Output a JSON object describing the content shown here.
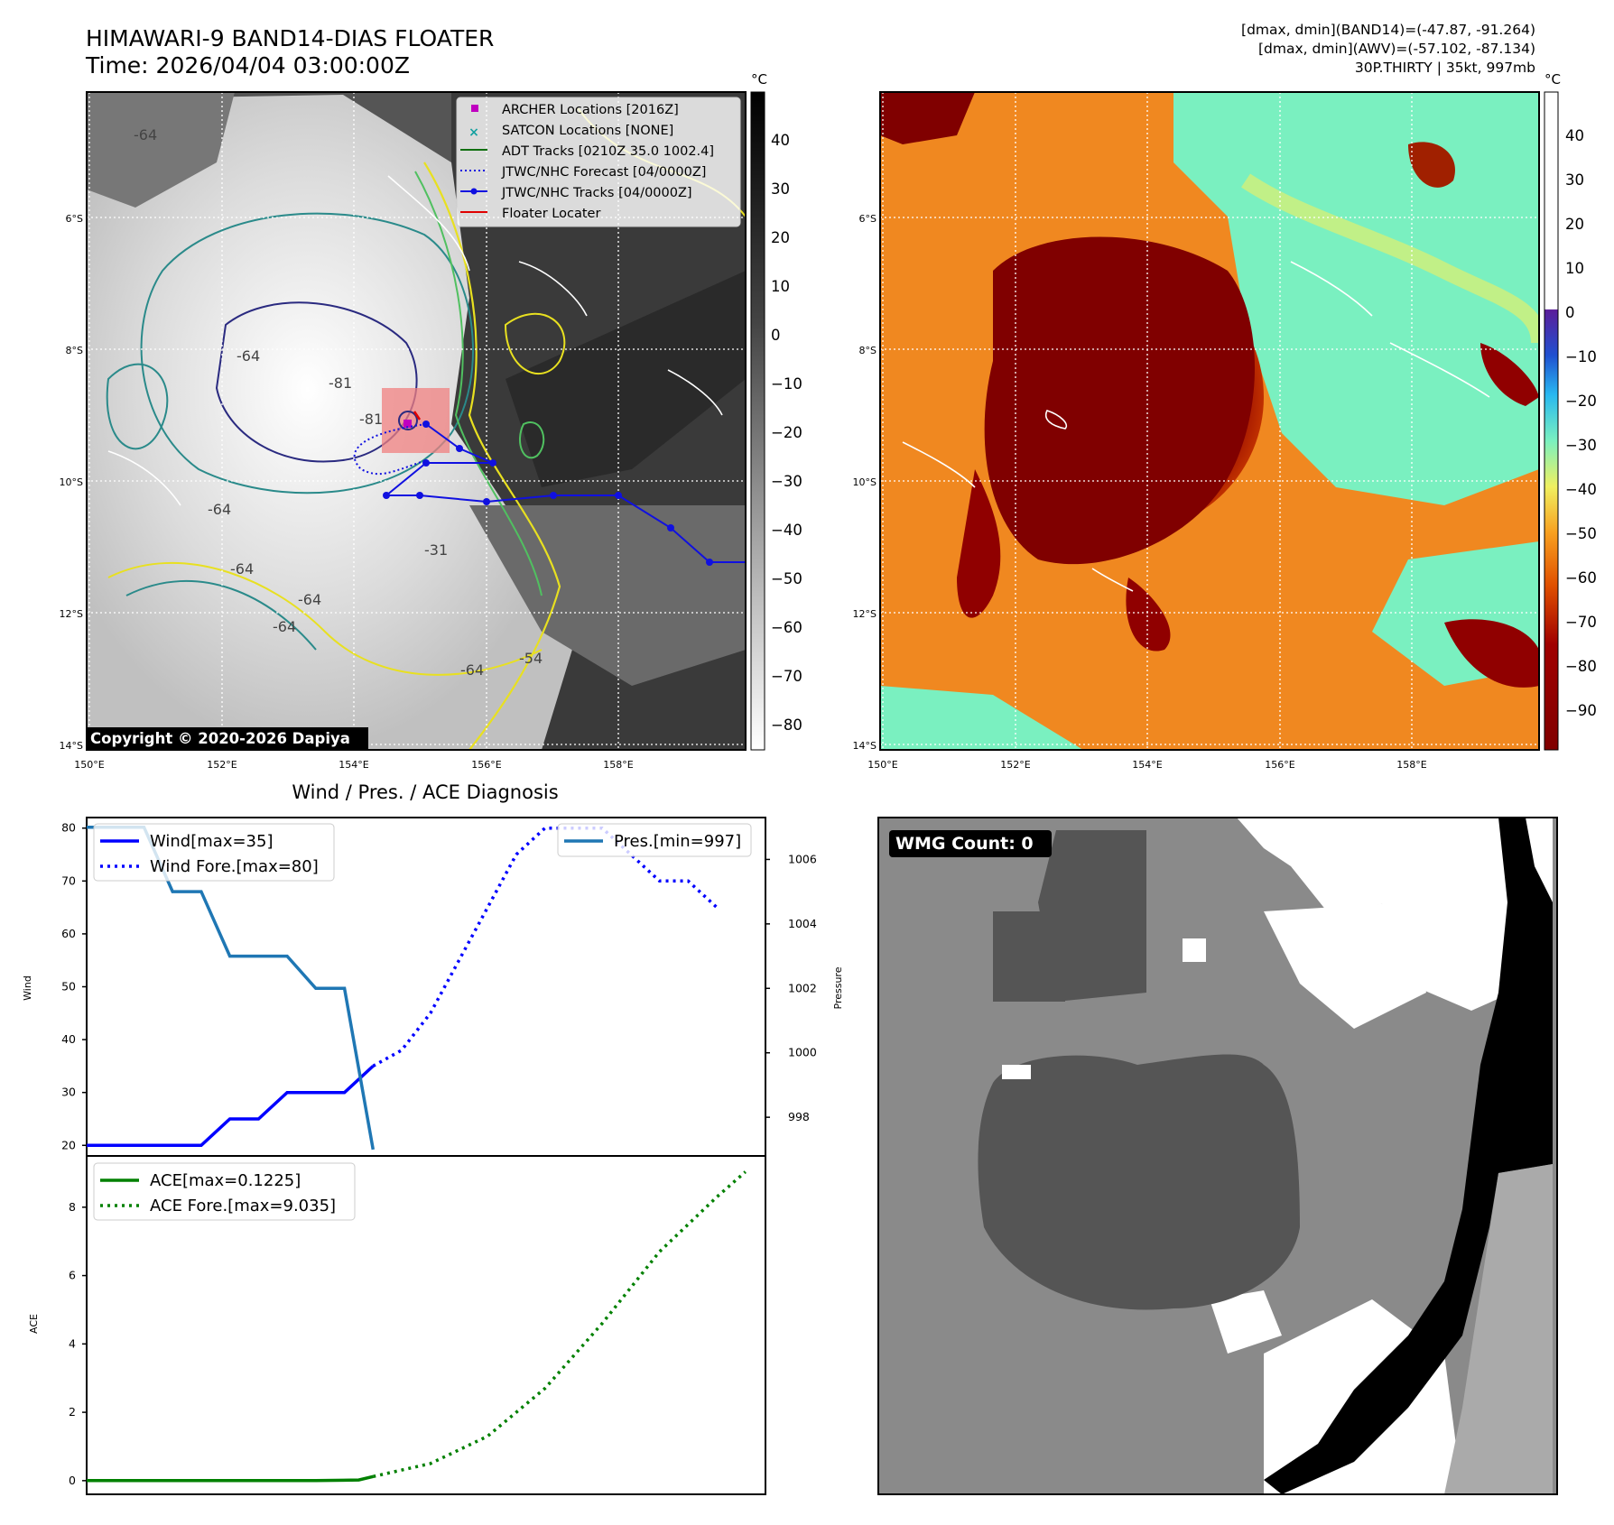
{
  "header": {
    "title_line1": "HIMAWARI-9 BAND14-DIAS FLOATER",
    "title_line2": "Time: 2026/04/04 03:00:00Z",
    "info_line1": "[dmax, dmin](BAND14)=(-47.87, -91.264)",
    "info_line2": "[dmax, dmin](AWV)=(-57.102, -87.134)",
    "info_line3": "30P.THIRTY | 35kt, 997mb"
  },
  "map": {
    "lon_ticks": [
      "150°E",
      "152°E",
      "154°E",
      "156°E",
      "158°E"
    ],
    "lat_ticks": [
      "6°S",
      "8°S",
      "10°S",
      "12°S",
      "14°S"
    ],
    "copyright": "Copyright © 2020-2026 Dapiya",
    "contour_labels": [
      "-64",
      "-64",
      "-81",
      "-81",
      "-64",
      "-64",
      "-64",
      "-31",
      "-64",
      "-54",
      "-64"
    ],
    "legend": [
      {
        "label": "ARCHER Locations [2016Z]",
        "color": "#c000c0",
        "kind": "square"
      },
      {
        "label": "SATCON Locations [NONE]",
        "color": "#14a0a0",
        "kind": "x"
      },
      {
        "label": "ADT Tracks [0210Z 35.0 1002.4]",
        "color": "#107010",
        "kind": "line"
      },
      {
        "label": "JTWC/NHC Forecast [04/0000Z]",
        "color": "#1010e0",
        "kind": "dotted"
      },
      {
        "label": "JTWC/NHC Tracks [04/0000Z]",
        "color": "#1010e0",
        "kind": "line-dot"
      },
      {
        "label": "Floater Locater",
        "color": "#e00000",
        "kind": "line"
      }
    ],
    "colorbar_unit": "°C",
    "colorbar_ticks_gray": [
      "40",
      "30",
      "20",
      "10",
      "0",
      "−10",
      "−20",
      "−30",
      "−40",
      "−50",
      "−60",
      "−70",
      "−80"
    ],
    "colorbar_ticks_color": [
      "40",
      "30",
      "20",
      "10",
      "0",
      "−10",
      "−20",
      "−30",
      "−40",
      "−50",
      "−60",
      "−70",
      "−80",
      "−90"
    ]
  },
  "diagnosis": {
    "title": "Wind / Pres. / ACE Diagnosis",
    "wind_ylabel": "Wind",
    "pres_ylabel": "Pressure",
    "ace_ylabel": "ACE",
    "wind_yticks": [
      "20",
      "30",
      "40",
      "50",
      "60",
      "70",
      "80"
    ],
    "pres_yticks": [
      "998",
      "1000",
      "1002",
      "1004",
      "1006"
    ],
    "ace_yticks": [
      "0",
      "2",
      "4",
      "6",
      "8"
    ]
  },
  "wmg": {
    "label": "WMG Count: 0"
  },
  "chart_data": [
    {
      "type": "line",
      "title": "Wind / Pres. / ACE Diagnosis",
      "ylabel": "Wind",
      "ylim": [
        18,
        82
      ],
      "y2label": "Pressure",
      "y2lim": [
        996.8,
        1007.3
      ],
      "series": [
        {
          "name": "Wind[max=35]",
          "axis": "left",
          "style": "solid",
          "color": "#0000ff",
          "points": [
            [
              0,
              20
            ],
            [
              1,
              20
            ],
            [
              2,
              20
            ],
            [
              3,
              20
            ],
            [
              4,
              20
            ],
            [
              5,
              25
            ],
            [
              6,
              25
            ],
            [
              7,
              30
            ],
            [
              8,
              30
            ],
            [
              9,
              30
            ],
            [
              10,
              35
            ]
          ]
        },
        {
          "name": "Wind Fore.[max=80]",
          "axis": "left",
          "style": "dotted",
          "color": "#0000ff",
          "points": [
            [
              10,
              35
            ],
            [
              11,
              38
            ],
            [
              12,
              45
            ],
            [
              13,
              55
            ],
            [
              14,
              65
            ],
            [
              15,
              75
            ],
            [
              16,
              80
            ],
            [
              17,
              80
            ],
            [
              18,
              80
            ],
            [
              19,
              75
            ],
            [
              20,
              70
            ],
            [
              21,
              70
            ],
            [
              22,
              65
            ]
          ]
        },
        {
          "name": "Pres.[min=997]",
          "axis": "right",
          "style": "solid",
          "color": "#1f77b4",
          "points": [
            [
              0,
              1007
            ],
            [
              1,
              1007
            ],
            [
              2,
              1007
            ],
            [
              3,
              1005
            ],
            [
              4,
              1005
            ],
            [
              5,
              1003
            ],
            [
              6,
              1003
            ],
            [
              7,
              1003
            ],
            [
              8,
              1002
            ],
            [
              9,
              1002
            ],
            [
              10,
              997
            ]
          ]
        }
      ]
    },
    {
      "type": "line",
      "ylabel": "ACE",
      "ylim": [
        -0.4,
        9.5
      ],
      "series": [
        {
          "name": "ACE[max=0.1225]",
          "style": "solid",
          "color": "#008000",
          "points": [
            [
              0,
              0
            ],
            [
              2,
              0
            ],
            [
              4,
              0
            ],
            [
              6,
              0
            ],
            [
              8,
              0
            ],
            [
              9.5,
              0.02
            ],
            [
              10,
              0.12
            ]
          ]
        },
        {
          "name": "ACE Fore.[max=9.035]",
          "style": "dotted",
          "color": "#008000",
          "points": [
            [
              10,
              0.12
            ],
            [
              12,
              0.5
            ],
            [
              14,
              1.3
            ],
            [
              16,
              2.7
            ],
            [
              18,
              4.6
            ],
            [
              20,
              6.7
            ],
            [
              22,
              8.3
            ],
            [
              23,
              9.035
            ]
          ]
        }
      ]
    }
  ]
}
